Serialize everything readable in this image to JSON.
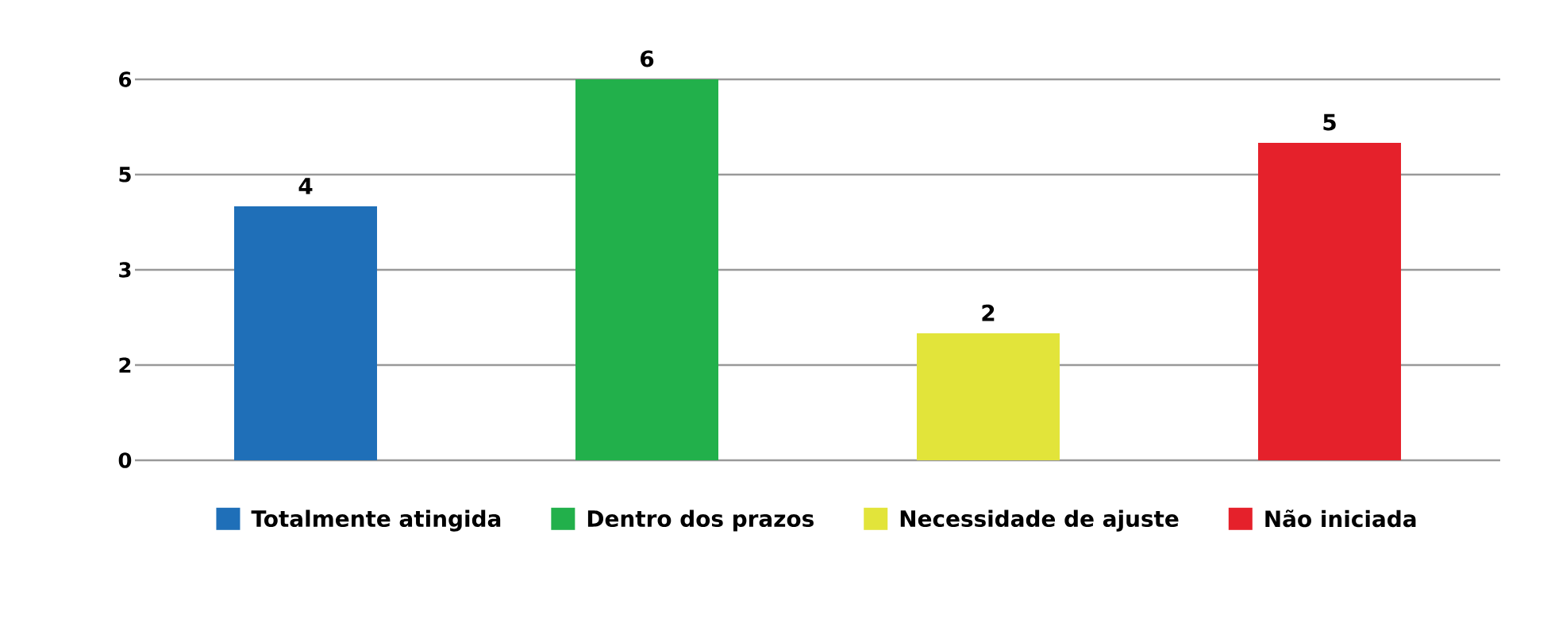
{
  "chart_data": {
    "type": "bar",
    "categories": [
      null,
      null,
      null,
      null
    ],
    "series": [
      {
        "name": "Totalmente atingida",
        "color": "#1f6fb8",
        "values": [
          4,
          null,
          null,
          null
        ]
      },
      {
        "name": "Dentro dos prazos",
        "color": "#22b04b",
        "values": [
          null,
          6,
          null,
          null
        ]
      },
      {
        "name": "Necessidade de ajuste",
        "color": "#e2e43a",
        "values": [
          null,
          null,
          2,
          null
        ]
      },
      {
        "name": "Não iniciada",
        "color": "#e5212b",
        "values": [
          null,
          null,
          null,
          5
        ]
      }
    ],
    "ylim": [
      0,
      6
    ],
    "yticks": [
      0,
      {
        "value": 1.5,
        "label": "2"
      },
      3,
      {
        "value": 4.5,
        "label": "5"
      },
      6
    ],
    "grid": "y",
    "legend": "bottom",
    "data_labels": true
  }
}
